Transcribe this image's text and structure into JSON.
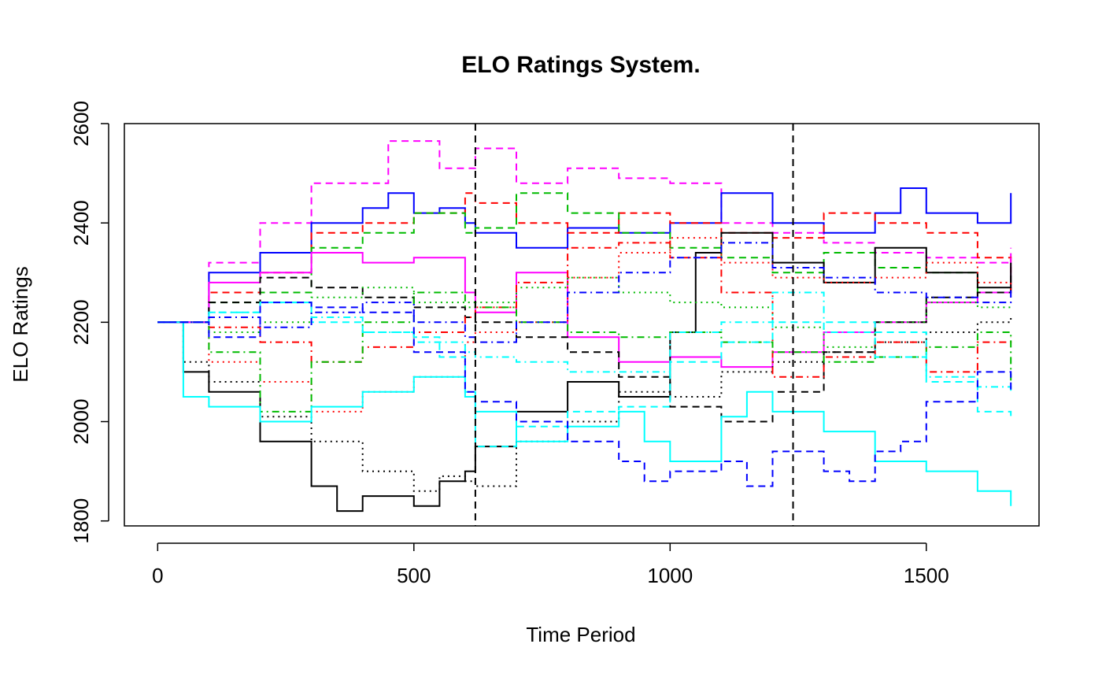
{
  "chart_data": {
    "type": "line",
    "title": "ELO Ratings System.",
    "xlabel": "Time Period",
    "ylabel": "ELO Ratings",
    "xlim": [
      -65,
      1720
    ],
    "ylim": [
      1790,
      2600
    ],
    "x_ticks": [
      0,
      500,
      1000,
      1500
    ],
    "y_ticks": [
      1800,
      2000,
      2200,
      2400,
      2600
    ],
    "x_tick_labels": [
      "0",
      "500",
      "1000",
      "1500"
    ],
    "y_tick_labels": [
      "1800",
      "2000",
      "2200",
      "2400",
      "2600"
    ],
    "grid": false,
    "legend": "none",
    "step": true,
    "vlines": [
      620,
      1240
    ],
    "series": [
      {
        "color": "#ff00ff",
        "dash": "dashed",
        "x": [
          0,
          100,
          200,
          300,
          450,
          550,
          620,
          700,
          800,
          900,
          1000,
          1100,
          1200,
          1300,
          1400,
          1500,
          1600,
          1665
        ],
        "y": [
          2200,
          2320,
          2400,
          2480,
          2565,
          2510,
          2550,
          2480,
          2510,
          2490,
          2480,
          2400,
          2380,
          2360,
          2340,
          2330,
          2320,
          2350
        ]
      },
      {
        "color": "#0000ff",
        "dash": "solid",
        "x": [
          0,
          100,
          200,
          300,
          400,
          450,
          500,
          550,
          600,
          620,
          700,
          800,
          900,
          1000,
          1100,
          1200,
          1300,
          1400,
          1450,
          1500,
          1600,
          1665
        ],
        "y": [
          2200,
          2300,
          2340,
          2400,
          2430,
          2460,
          2420,
          2430,
          2400,
          2380,
          2350,
          2390,
          2380,
          2400,
          2460,
          2400,
          2380,
          2420,
          2470,
          2420,
          2400,
          2460
        ]
      },
      {
        "color": "#ff0000",
        "dash": "dashed",
        "x": [
          0,
          100,
          200,
          300,
          400,
          500,
          600,
          620,
          700,
          800,
          900,
          1000,
          1100,
          1200,
          1300,
          1400,
          1500,
          1600,
          1665
        ],
        "y": [
          2200,
          2260,
          2300,
          2380,
          2400,
          2420,
          2460,
          2440,
          2400,
          2380,
          2420,
          2400,
          2380,
          2370,
          2420,
          2400,
          2380,
          2330,
          2300
        ]
      },
      {
        "color": "#00bb00",
        "dash": "dashed",
        "x": [
          0,
          100,
          200,
          300,
          400,
          500,
          600,
          620,
          700,
          800,
          900,
          1000,
          1100,
          1200,
          1300,
          1400,
          1500,
          1600,
          1665
        ],
        "y": [
          2200,
          2240,
          2260,
          2350,
          2380,
          2420,
          2380,
          2390,
          2460,
          2420,
          2380,
          2350,
          2330,
          2300,
          2340,
          2310,
          2300,
          2260,
          2260
        ]
      },
      {
        "color": "#ff00ff",
        "dash": "solid",
        "x": [
          0,
          100,
          200,
          300,
          400,
          500,
          600,
          620,
          700,
          800,
          900,
          1000,
          1100,
          1200,
          1300,
          1400,
          1500,
          1600,
          1665
        ],
        "y": [
          2200,
          2280,
          2300,
          2340,
          2320,
          2330,
          2260,
          2220,
          2300,
          2170,
          2120,
          2130,
          2110,
          2140,
          2180,
          2200,
          2240,
          2260,
          2330
        ]
      },
      {
        "color": "#000000",
        "dash": "dashed",
        "x": [
          0,
          100,
          200,
          300,
          400,
          500,
          600,
          620,
          700,
          800,
          900,
          1000,
          1100,
          1200,
          1300,
          1400,
          1500,
          1600,
          1665
        ],
        "y": [
          2200,
          2240,
          2290,
          2270,
          2250,
          2230,
          2210,
          2200,
          2170,
          2140,
          2090,
          2030,
          2000,
          2060,
          2140,
          2200,
          2250,
          2260,
          2300
        ]
      },
      {
        "color": "#000000",
        "dash": "solid",
        "x": [
          0,
          50,
          100,
          200,
          300,
          350,
          400,
          500,
          550,
          600,
          620,
          700,
          800,
          900,
          1000,
          1050,
          1100,
          1200,
          1300,
          1400,
          1500,
          1600,
          1665
        ],
        "y": [
          2200,
          2100,
          2060,
          1960,
          1870,
          1820,
          1850,
          1830,
          1880,
          1900,
          1950,
          2020,
          2080,
          2050,
          2180,
          2340,
          2380,
          2320,
          2280,
          2350,
          2300,
          2270,
          2320
        ]
      },
      {
        "color": "#000000",
        "dash": "dotted",
        "x": [
          0,
          50,
          100,
          200,
          300,
          400,
          500,
          550,
          600,
          620,
          700,
          800,
          900,
          1000,
          1100,
          1200,
          1300,
          1400,
          1500,
          1600,
          1665
        ],
        "y": [
          2200,
          2120,
          2080,
          2010,
          1960,
          1900,
          1860,
          1890,
          1880,
          1870,
          1960,
          2000,
          2060,
          2050,
          2100,
          2120,
          2140,
          2160,
          2180,
          2200,
          2210
        ]
      },
      {
        "color": "#ff0000",
        "dash": "dotted",
        "x": [
          0,
          100,
          200,
          300,
          400,
          500,
          600,
          620,
          700,
          800,
          900,
          1000,
          1100,
          1200,
          1300,
          1400,
          1500,
          1600,
          1665
        ],
        "y": [
          2200,
          2120,
          2080,
          2020,
          2060,
          2090,
          2160,
          2180,
          2200,
          2290,
          2340,
          2370,
          2320,
          2290,
          2280,
          2290,
          2320,
          2280,
          2260
        ]
      },
      {
        "color": "#00bb00",
        "dash": "dotted",
        "x": [
          0,
          100,
          200,
          300,
          400,
          500,
          600,
          620,
          700,
          800,
          900,
          1000,
          1100,
          1200,
          1300,
          1400,
          1500,
          1600,
          1665
        ],
        "y": [
          2200,
          2180,
          2200,
          2250,
          2270,
          2240,
          2230,
          2240,
          2270,
          2290,
          2260,
          2240,
          2230,
          2190,
          2150,
          2200,
          2240,
          2230,
          2230
        ]
      },
      {
        "color": "#ff0000",
        "dash": "dotdash",
        "x": [
          0,
          100,
          200,
          300,
          400,
          500,
          600,
          620,
          700,
          800,
          900,
          1000,
          1100,
          1200,
          1300,
          1400,
          1500,
          1600,
          1665
        ],
        "y": [
          2200,
          2190,
          2160,
          2120,
          2150,
          2180,
          2210,
          2230,
          2280,
          2350,
          2360,
          2330,
          2260,
          2090,
          2130,
          2160,
          2100,
          2160,
          2170
        ]
      },
      {
        "color": "#00bb00",
        "dash": "dotdash",
        "x": [
          0,
          100,
          200,
          300,
          400,
          500,
          600,
          620,
          700,
          800,
          900,
          1000,
          1100,
          1200,
          1300,
          1400,
          1500,
          1600,
          1665
        ],
        "y": [
          2200,
          2140,
          2020,
          2120,
          2200,
          2260,
          2240,
          2230,
          2200,
          2180,
          2170,
          2180,
          2160,
          2140,
          2120,
          2130,
          2150,
          2180,
          2080
        ]
      },
      {
        "color": "#00ffff",
        "dash": "solid",
        "x": [
          0,
          50,
          100,
          200,
          300,
          400,
          500,
          600,
          620,
          700,
          800,
          900,
          950,
          1000,
          1100,
          1150,
          1200,
          1300,
          1400,
          1500,
          1600,
          1665
        ],
        "y": [
          2200,
          2050,
          2030,
          2000,
          2030,
          2060,
          2090,
          2050,
          2020,
          1960,
          1990,
          2020,
          1960,
          1920,
          2010,
          2060,
          2020,
          1980,
          1920,
          1900,
          1860,
          1830
        ]
      },
      {
        "color": "#00ffff",
        "dash": "dashed",
        "x": [
          0,
          50,
          100,
          200,
          300,
          400,
          500,
          550,
          600,
          620,
          700,
          800,
          900,
          1000,
          1100,
          1200,
          1300,
          1400,
          1500,
          1600,
          1665
        ],
        "y": [
          2200,
          2200,
          2220,
          2240,
          2200,
          2180,
          2170,
          2130,
          2060,
          1950,
          1990,
          2020,
          2030,
          2120,
          2160,
          2200,
          2200,
          2180,
          2080,
          2020,
          2010
        ]
      },
      {
        "color": "#00ffff",
        "dash": "dotdash",
        "x": [
          0,
          100,
          200,
          300,
          400,
          500,
          600,
          620,
          700,
          800,
          900,
          1000,
          1100,
          1200,
          1300,
          1400,
          1500,
          1600,
          1665
        ],
        "y": [
          2200,
          2220,
          2240,
          2210,
          2180,
          2160,
          2140,
          2130,
          2120,
          2100,
          2100,
          2180,
          2200,
          2260,
          2180,
          2130,
          2090,
          2070,
          2060
        ]
      },
      {
        "color": "#0000ff",
        "dash": "dashed",
        "x": [
          0,
          100,
          200,
          300,
          400,
          500,
          600,
          620,
          700,
          800,
          900,
          950,
          1000,
          1100,
          1150,
          1200,
          1300,
          1350,
          1400,
          1450,
          1500,
          1600,
          1665
        ],
        "y": [
          2200,
          2170,
          2240,
          2230,
          2220,
          2140,
          2060,
          2040,
          2000,
          1960,
          1920,
          1880,
          1900,
          1920,
          1870,
          1940,
          1900,
          1880,
          1940,
          1960,
          2040,
          2100,
          2060
        ]
      },
      {
        "color": "#0000ff",
        "dash": "dotdash",
        "x": [
          0,
          100,
          200,
          300,
          400,
          500,
          600,
          620,
          700,
          800,
          900,
          1000,
          1100,
          1200,
          1300,
          1400,
          1500,
          1600,
          1665
        ],
        "y": [
          2200,
          2210,
          2190,
          2220,
          2240,
          2200,
          2170,
          2160,
          2200,
          2260,
          2300,
          2330,
          2360,
          2310,
          2290,
          2260,
          2250,
          2240,
          2270
        ]
      }
    ]
  }
}
